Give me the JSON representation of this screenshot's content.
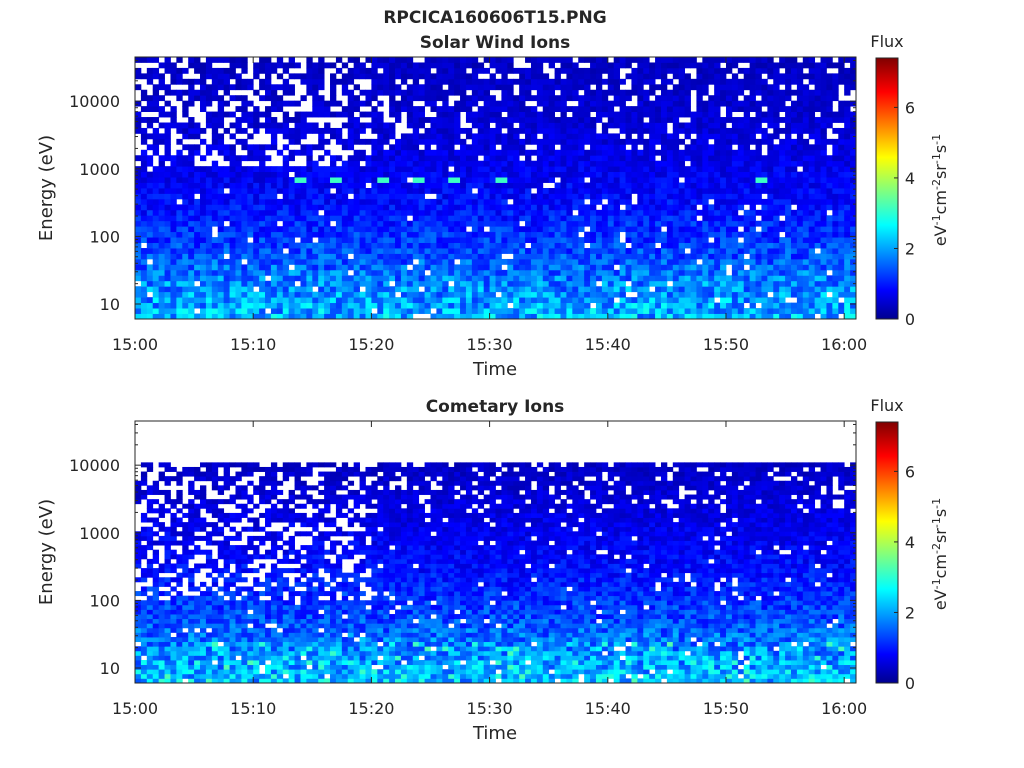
{
  "figure": {
    "title": "RPCICA160606T15.PNG"
  },
  "chart_data": [
    {
      "type": "heatmap",
      "title": "Solar Wind Ions",
      "xlabel": "Time",
      "ylabel": "Energy (eV)",
      "x_range": [
        "15:00",
        "16:01"
      ],
      "x_ticks": [
        "15:00",
        "15:10",
        "15:20",
        "15:30",
        "15:40",
        "15:50",
        "16:00"
      ],
      "y_scale": "log",
      "y_range": [
        6,
        45000
      ],
      "y_ticks": [
        10,
        100,
        1000,
        10000
      ],
      "colorbar": {
        "label": "Flux",
        "unit_label": "eV-1cm-2sr-1s-1",
        "range": [
          0,
          7.4
        ],
        "ticks": [
          0,
          2,
          4,
          6
        ],
        "colormap": "jet"
      },
      "energy_range_shown": [
        6,
        45000
      ],
      "features": [
        {
          "name": "solar-wind-peak",
          "energy": 700,
          "times": [
            "15:14",
            "15:17",
            "15:21",
            "15:24",
            "15:27",
            "15:31",
            "15:53"
          ],
          "flux": 3.2
        },
        {
          "name": "sparse-high-energy-before",
          "time_range": [
            "15:00",
            "15:20"
          ],
          "energy_range": [
            1000,
            45000
          ],
          "flux": 0.6
        }
      ],
      "flux_profile": [
        {
          "energy": 7,
          "flux": 2.2
        },
        {
          "energy": 20,
          "flux": 1.9
        },
        {
          "energy": 50,
          "flux": 1.5
        },
        {
          "energy": 100,
          "flux": 1.3
        },
        {
          "energy": 300,
          "flux": 1.0
        },
        {
          "energy": 1000,
          "flux": 0.8
        },
        {
          "energy": 5000,
          "flux": 0.6
        },
        {
          "energy": 40000,
          "flux": 0.5
        }
      ]
    },
    {
      "type": "heatmap",
      "title": "Cometary Ions",
      "xlabel": "Time",
      "ylabel": "Energy (eV)",
      "x_range": [
        "15:00",
        "16:01"
      ],
      "x_ticks": [
        "15:00",
        "15:10",
        "15:20",
        "15:30",
        "15:40",
        "15:50",
        "16:00"
      ],
      "y_scale": "log",
      "y_range": [
        6,
        45000
      ],
      "y_ticks": [
        10,
        100,
        1000,
        10000
      ],
      "colorbar": {
        "label": "Flux",
        "unit_label": "eV-1cm-2sr-1s-1",
        "range": [
          0,
          7.4
        ],
        "ticks": [
          0,
          2,
          4,
          6
        ],
        "colormap": "jet"
      },
      "energy_range_shown": [
        6,
        11000
      ],
      "features": [
        {
          "name": "low-energy-bursts",
          "energy_range": [
            6,
            25
          ],
          "flux": 2.6
        },
        {
          "name": "sparse-high-energy-before",
          "time_range": [
            "15:00",
            "15:20"
          ],
          "energy_range": [
            100,
            11000
          ],
          "flux": 0.7
        }
      ],
      "flux_profile": [
        {
          "energy": 7,
          "flux": 2.3
        },
        {
          "energy": 20,
          "flux": 1.9
        },
        {
          "energy": 50,
          "flux": 1.5
        },
        {
          "energy": 100,
          "flux": 1.3
        },
        {
          "energy": 300,
          "flux": 1.0
        },
        {
          "energy": 1000,
          "flux": 0.8
        },
        {
          "energy": 5000,
          "flux": 0.6
        },
        {
          "energy": 11000,
          "flux": 0.5
        }
      ]
    }
  ]
}
